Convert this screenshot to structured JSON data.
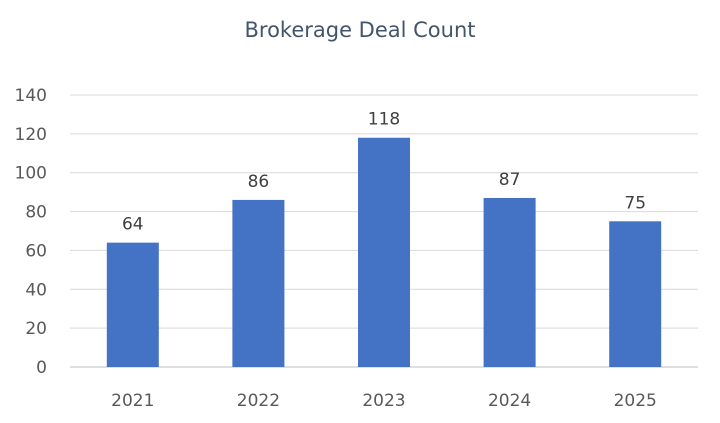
{
  "chart_data": {
    "type": "bar",
    "title": "Brokerage Deal Count",
    "categories": [
      "2021",
      "2022",
      "2023",
      "2024",
      "2025"
    ],
    "values": [
      64,
      86,
      118,
      87,
      75
    ],
    "xlabel": "",
    "ylabel": "",
    "ylim": [
      0,
      140
    ],
    "yticks": [
      "0",
      "20",
      "40",
      "60",
      "80",
      "100",
      "120",
      "140"
    ],
    "grid": true,
    "legend": "none",
    "bar_color": "#4472c4",
    "data_labels": [
      "64",
      "86",
      "118",
      "87",
      "75"
    ]
  }
}
